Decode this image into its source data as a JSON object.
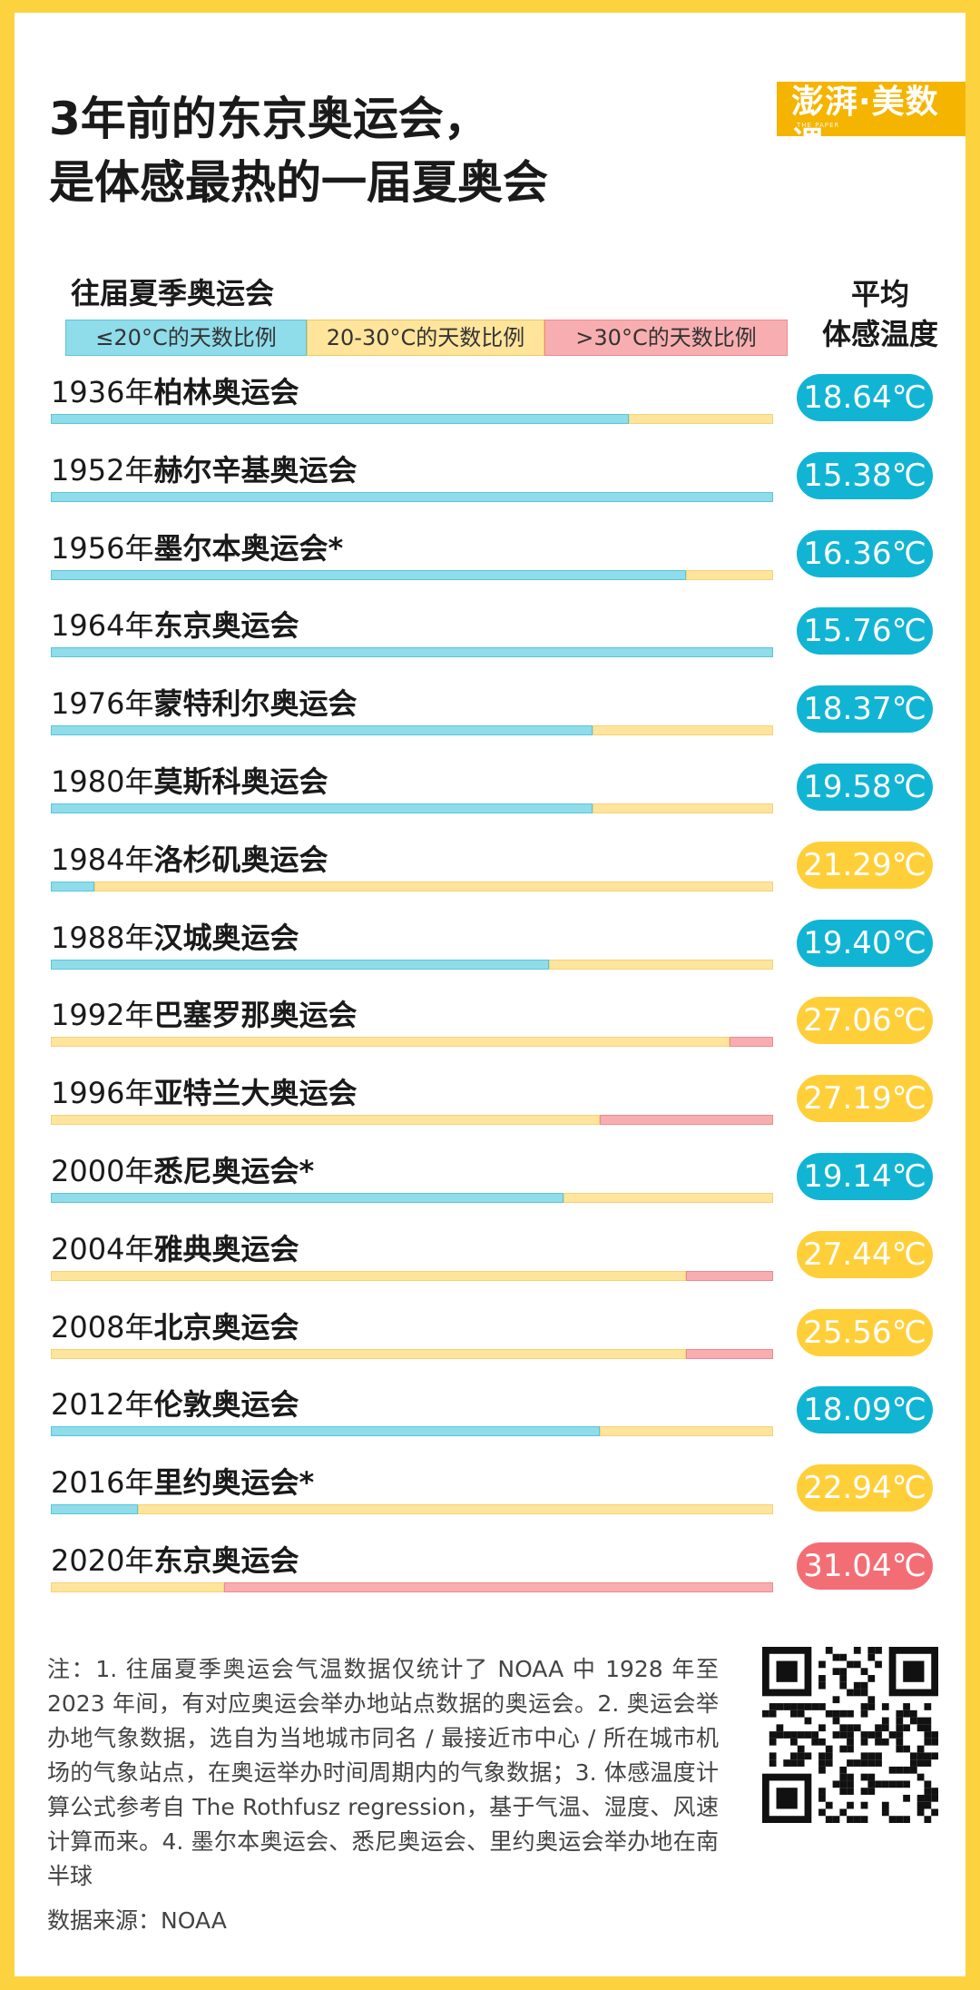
{
  "title_lines": [
    "3年前的东京奥运会，",
    "是体感最热的一届夏奥会"
  ],
  "logo": {
    "text": "澎湃·美数课",
    "sub": "THE PAPER"
  },
  "subtitle": "往届夏季奥运会",
  "legend": [
    "≤20°C的天数比例",
    "20-30°C的天数比例",
    ">30°C的天数比例"
  ],
  "column_header": [
    "平均",
    "体感温度"
  ],
  "colors": {
    "cold": "#8FDCEA",
    "mild": "#FFE49C",
    "hot": "#F8AEB0",
    "pill_cold": "#12B4D4",
    "pill_mild": "#FFCF3A",
    "pill_hot": "#F26E74"
  },
  "chart_data": {
    "type": "bar",
    "title": "3年前的东京奥运会，是体感最热的一届夏奥会",
    "subtitle": "往届夏季奥运会",
    "series": [
      {
        "name": "≤20°C的天数比例",
        "values": [
          0.8,
          1.0,
          0.88,
          1.0,
          0.75,
          0.75,
          0.06,
          0.69,
          0.0,
          0.0,
          0.71,
          0.0,
          0.0,
          0.76,
          0.12,
          0.0
        ]
      },
      {
        "name": "20-30°C的天数比例",
        "values": [
          0.2,
          0.0,
          0.12,
          0.0,
          0.25,
          0.25,
          0.94,
          0.31,
          0.94,
          0.76,
          0.29,
          0.88,
          0.88,
          0.24,
          0.88,
          0.24
        ]
      },
      {
        "name": ">30°C的天数比例",
        "values": [
          0.0,
          0.0,
          0.0,
          0.0,
          0.0,
          0.0,
          0.0,
          0.0,
          0.06,
          0.24,
          0.0,
          0.12,
          0.12,
          0.0,
          0.0,
          0.76
        ]
      }
    ],
    "rows": [
      {
        "year": "1936年",
        "name": "柏林奥运会",
        "temp": "18.64℃",
        "level": "cold"
      },
      {
        "year": "1952年",
        "name": "赫尔辛基奥运会",
        "temp": "15.38℃",
        "level": "cold"
      },
      {
        "year": "1956年",
        "name": "墨尔本奥运会*",
        "temp": "16.36℃",
        "level": "cold"
      },
      {
        "year": "1964年",
        "name": "东京奥运会",
        "temp": "15.76℃",
        "level": "cold"
      },
      {
        "year": "1976年",
        "name": "蒙特利尔奥运会",
        "temp": "18.37℃",
        "level": "cold"
      },
      {
        "year": "1980年",
        "name": "莫斯科奥运会",
        "temp": "19.58℃",
        "level": "cold"
      },
      {
        "year": "1984年",
        "name": "洛杉矶奥运会",
        "temp": "21.29℃",
        "level": "mild"
      },
      {
        "year": "1988年",
        "name": "汉城奥运会",
        "temp": "19.40℃",
        "level": "cold"
      },
      {
        "year": "1992年",
        "name": "巴塞罗那奥运会",
        "temp": "27.06℃",
        "level": "mild"
      },
      {
        "year": "1996年",
        "name": "亚特兰大奥运会",
        "temp": "27.19℃",
        "level": "mild"
      },
      {
        "year": "2000年",
        "name": "悉尼奥运会*",
        "temp": "19.14℃",
        "level": "cold"
      },
      {
        "year": "2004年",
        "name": "雅典奥运会",
        "temp": "27.44℃",
        "level": "mild"
      },
      {
        "year": "2008年",
        "name": "北京奥运会",
        "temp": "25.56℃",
        "level": "mild"
      },
      {
        "year": "2012年",
        "name": "伦敦奥运会",
        "temp": "18.09℃",
        "level": "cold"
      },
      {
        "year": "2016年",
        "name": "里约奥运会*",
        "temp": "22.94℃",
        "level": "mild"
      },
      {
        "year": "2020年",
        "name": "东京奥运会",
        "temp": "31.04℃",
        "level": "hot"
      }
    ]
  },
  "note": "注：1. 往届夏季奥运会气温数据仅统计了 NOAA 中 1928 年至 2023 年间，有对应奥运会举办地站点数据的奥运会。2. 奥运会举办地气象数据，选自为当地城市同名 / 最接近市中心 / 所在城市机场的气象站点，在奥运举办时间周期内的气象数据；3. 体感温度计算公式参考自 The Rothfusz regression，基于气温、湿度、风速计算而来。4. 墨尔本奥运会、悉尼奥运会、里约奥运会举办地在南半球",
  "source": "数据来源：NOAA",
  "qr_icon": "qr-code-icon"
}
